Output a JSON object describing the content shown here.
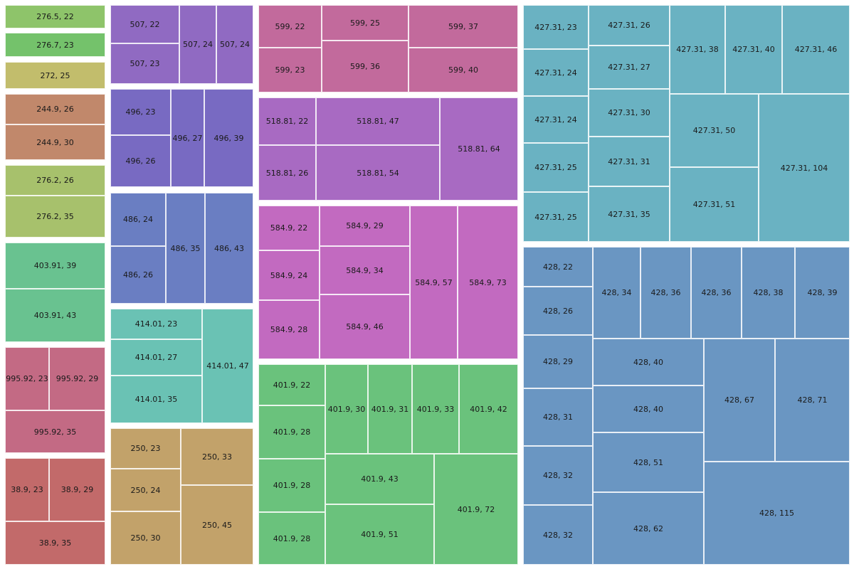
{
  "chart_data": {
    "type": "treemap",
    "title": "",
    "groups": [
      {
        "name": "276.5",
        "color": "#8ec46a",
        "cells": [
          {
            "label": "276.5, 22",
            "value": 22
          }
        ]
      },
      {
        "name": "276.7",
        "color": "#74c26b",
        "cells": [
          {
            "label": "276.7, 23",
            "value": 23
          }
        ]
      },
      {
        "name": "272",
        "color": "#c2bd6c",
        "cells": [
          {
            "label": "272, 25",
            "value": 25
          }
        ]
      },
      {
        "name": "244.9",
        "color": "#c1886b",
        "cells": [
          {
            "label": "244.9, 26",
            "value": 26
          },
          {
            "label": "244.9, 30",
            "value": 30
          }
        ]
      },
      {
        "name": "276.2",
        "color": "#a7c16c",
        "cells": [
          {
            "label": "276.2, 26",
            "value": 26
          },
          {
            "label": "276.2, 35",
            "value": 35
          }
        ]
      },
      {
        "name": "403.91",
        "color": "#69c290",
        "cells": [
          {
            "label": "403.91, 39",
            "value": 39
          },
          {
            "label": "403.91, 43",
            "value": 43
          }
        ]
      },
      {
        "name": "995.92",
        "color": "#c36a84",
        "cells": [
          {
            "label": "995.92, 23",
            "value": 23
          },
          {
            "label": "995.92, 29",
            "value": 29
          },
          {
            "label": "995.92, 35",
            "value": 35
          }
        ]
      },
      {
        "name": "38.9",
        "color": "#c26a6a",
        "cells": [
          {
            "label": "38.9, 23",
            "value": 23
          },
          {
            "label": "38.9, 29",
            "value": 29
          },
          {
            "label": "38.9, 35",
            "value": 35
          }
        ]
      },
      {
        "name": "507",
        "color": "#906ac2",
        "cells": [
          {
            "label": "507, 22",
            "value": 22
          },
          {
            "label": "507, 23",
            "value": 23
          },
          {
            "label": "507, 24",
            "value": 24
          },
          {
            "label": "507, 24",
            "value": 24
          }
        ]
      },
      {
        "name": "496",
        "color": "#786ac2",
        "cells": [
          {
            "label": "496, 23",
            "value": 23
          },
          {
            "label": "496, 26",
            "value": 26
          },
          {
            "label": "496, 27",
            "value": 27
          },
          {
            "label": "496, 39",
            "value": 39
          }
        ]
      },
      {
        "name": "486",
        "color": "#6a7ec2",
        "cells": [
          {
            "label": "486, 24",
            "value": 24
          },
          {
            "label": "486, 26",
            "value": 26
          },
          {
            "label": "486, 35",
            "value": 35
          },
          {
            "label": "486, 43",
            "value": 43
          }
        ]
      },
      {
        "name": "414.01",
        "color": "#6ac2b4",
        "cells": [
          {
            "label": "414.01, 23",
            "value": 23
          },
          {
            "label": "414.01, 27",
            "value": 27
          },
          {
            "label": "414.01, 35",
            "value": 35
          },
          {
            "label": "414.01, 47",
            "value": 47
          }
        ]
      },
      {
        "name": "250",
        "color": "#c2a26a",
        "cells": [
          {
            "label": "250, 23",
            "value": 23
          },
          {
            "label": "250, 24",
            "value": 24
          },
          {
            "label": "250, 30",
            "value": 30
          },
          {
            "label": "250, 33",
            "value": 33
          },
          {
            "label": "250, 45",
            "value": 45
          }
        ]
      },
      {
        "name": "599",
        "color": "#c26a9c",
        "cells": [
          {
            "label": "599, 22",
            "value": 22
          },
          {
            "label": "599, 23",
            "value": 23
          },
          {
            "label": "599, 25",
            "value": 25
          },
          {
            "label": "599, 36",
            "value": 36
          },
          {
            "label": "599, 37",
            "value": 37
          },
          {
            "label": "599, 40",
            "value": 40
          }
        ]
      },
      {
        "name": "518.81",
        "color": "#a86ac2",
        "cells": [
          {
            "label": "518.81, 22",
            "value": 22
          },
          {
            "label": "518.81, 26",
            "value": 26
          },
          {
            "label": "518.81, 47",
            "value": 47
          },
          {
            "label": "518.81, 54",
            "value": 54
          },
          {
            "label": "518.81, 64",
            "value": 64
          }
        ]
      },
      {
        "name": "584.9",
        "color": "#c26ac0",
        "cells": [
          {
            "label": "584.9, 22",
            "value": 22
          },
          {
            "label": "584.9, 24",
            "value": 24
          },
          {
            "label": "584.9, 28",
            "value": 28
          },
          {
            "label": "584.9, 29",
            "value": 29
          },
          {
            "label": "584.9, 34",
            "value": 34
          },
          {
            "label": "584.9, 46",
            "value": 46
          },
          {
            "label": "584.9, 57",
            "value": 57
          },
          {
            "label": "584.9, 73",
            "value": 73
          }
        ]
      },
      {
        "name": "401.9",
        "color": "#6ac27c",
        "cells": [
          {
            "label": "401.9, 22",
            "value": 22
          },
          {
            "label": "401.9, 28",
            "value": 28
          },
          {
            "label": "401.9, 28",
            "value": 28
          },
          {
            "label": "401.9, 28",
            "value": 28
          },
          {
            "label": "401.9, 30",
            "value": 30
          },
          {
            "label": "401.9, 31",
            "value": 31
          },
          {
            "label": "401.9, 33",
            "value": 33
          },
          {
            "label": "401.9, 42",
            "value": 42
          },
          {
            "label": "401.9, 43",
            "value": 43
          },
          {
            "label": "401.9, 51",
            "value": 51
          },
          {
            "label": "401.9, 72",
            "value": 72
          }
        ]
      },
      {
        "name": "427.31",
        "color": "#6ab2c2",
        "cells": [
          {
            "label": "427.31, 23",
            "value": 23
          },
          {
            "label": "427.31, 24",
            "value": 24
          },
          {
            "label": "427.31, 24",
            "value": 24
          },
          {
            "label": "427.31, 25",
            "value": 25
          },
          {
            "label": "427.31, 25",
            "value": 25
          },
          {
            "label": "427.31, 26",
            "value": 26
          },
          {
            "label": "427.31, 27",
            "value": 27
          },
          {
            "label": "427.31, 30",
            "value": 30
          },
          {
            "label": "427.31, 31",
            "value": 31
          },
          {
            "label": "427.31, 35",
            "value": 35
          },
          {
            "label": "427.31, 38",
            "value": 38
          },
          {
            "label": "427.31, 40",
            "value": 40
          },
          {
            "label": "427.31, 46",
            "value": 46
          },
          {
            "label": "427.31, 50",
            "value": 50
          },
          {
            "label": "427.31, 51",
            "value": 51
          },
          {
            "label": "427.31, 104",
            "value": 104
          }
        ]
      },
      {
        "name": "428",
        "color": "#6a96c2",
        "cells": [
          {
            "label": "428, 22",
            "value": 22
          },
          {
            "label": "428, 26",
            "value": 26
          },
          {
            "label": "428, 29",
            "value": 29
          },
          {
            "label": "428, 31",
            "value": 31
          },
          {
            "label": "428, 32",
            "value": 32
          },
          {
            "label": "428, 32",
            "value": 32
          },
          {
            "label": "428, 34",
            "value": 34
          },
          {
            "label": "428, 36",
            "value": 36
          },
          {
            "label": "428, 36",
            "value": 36
          },
          {
            "label": "428, 38",
            "value": 38
          },
          {
            "label": "428, 39",
            "value": 39
          },
          {
            "label": "428, 40",
            "value": 40
          },
          {
            "label": "428, 40",
            "value": 40
          },
          {
            "label": "428, 51",
            "value": 51
          },
          {
            "label": "428, 62",
            "value": 62
          },
          {
            "label": "428, 67",
            "value": 67
          },
          {
            "label": "428, 71",
            "value": 71
          },
          {
            "label": "428, 115",
            "value": 115
          }
        ]
      }
    ]
  }
}
